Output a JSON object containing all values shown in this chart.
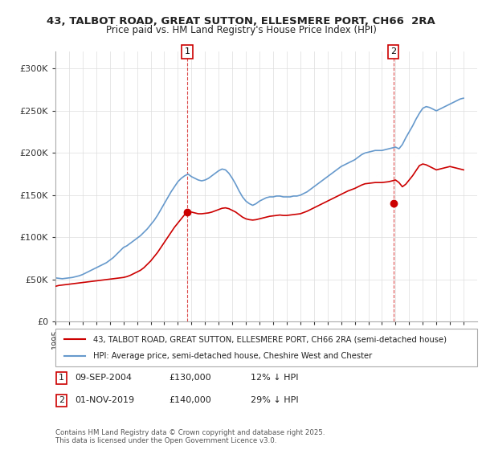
{
  "title": "43, TALBOT ROAD, GREAT SUTTON, ELLESMERE PORT, CH66  2RA",
  "subtitle": "Price paid vs. HM Land Registry's House Price Index (HPI)",
  "ylabel_ticks": [
    "£0",
    "£50K",
    "£100K",
    "£150K",
    "£200K",
    "£250K",
    "£300K"
  ],
  "ytick_values": [
    0,
    50000,
    100000,
    150000,
    200000,
    250000,
    300000
  ],
  "ylim": [
    0,
    320000
  ],
  "xlim_start": 1995,
  "xlim_end": 2026,
  "legend_line1": "43, TALBOT ROAD, GREAT SUTTON, ELLESMERE PORT, CH66 2RA (semi-detached house)",
  "legend_line2": "HPI: Average price, semi-detached house, Cheshire West and Chester",
  "annotation1": {
    "label": "1",
    "date_str": "09-SEP-2004",
    "price": "£130,000",
    "pct": "12% ↓ HPI",
    "x_data": 2004.69,
    "y_data": 130000
  },
  "annotation2": {
    "label": "2",
    "date_str": "01-NOV-2019",
    "price": "£140,000",
    "pct": "29% ↓ HPI",
    "x_data": 2019.83,
    "y_data": 140000
  },
  "copyright": "Contains HM Land Registry data © Crown copyright and database right 2025.\nThis data is licensed under the Open Government Licence v3.0.",
  "line_color_red": "#cc0000",
  "line_color_blue": "#6699cc",
  "background_color": "#ffffff",
  "grid_color": "#dddddd",
  "hpi_x": [
    1995.0,
    1995.25,
    1995.5,
    1995.75,
    1996.0,
    1996.25,
    1996.5,
    1996.75,
    1997.0,
    1997.25,
    1997.5,
    1997.75,
    1998.0,
    1998.25,
    1998.5,
    1998.75,
    1999.0,
    1999.25,
    1999.5,
    1999.75,
    2000.0,
    2000.25,
    2000.5,
    2000.75,
    2001.0,
    2001.25,
    2001.5,
    2001.75,
    2002.0,
    2002.25,
    2002.5,
    2002.75,
    2003.0,
    2003.25,
    2003.5,
    2003.75,
    2004.0,
    2004.25,
    2004.5,
    2004.75,
    2005.0,
    2005.25,
    2005.5,
    2005.75,
    2006.0,
    2006.25,
    2006.5,
    2006.75,
    2007.0,
    2007.25,
    2007.5,
    2007.75,
    2008.0,
    2008.25,
    2008.5,
    2008.75,
    2009.0,
    2009.25,
    2009.5,
    2009.75,
    2010.0,
    2010.25,
    2010.5,
    2010.75,
    2011.0,
    2011.25,
    2011.5,
    2011.75,
    2012.0,
    2012.25,
    2012.5,
    2012.75,
    2013.0,
    2013.25,
    2013.5,
    2013.75,
    2014.0,
    2014.25,
    2014.5,
    2014.75,
    2015.0,
    2015.25,
    2015.5,
    2015.75,
    2016.0,
    2016.25,
    2016.5,
    2016.75,
    2017.0,
    2017.25,
    2017.5,
    2017.75,
    2018.0,
    2018.25,
    2018.5,
    2018.75,
    2019.0,
    2019.25,
    2019.5,
    2019.75,
    2020.0,
    2020.25,
    2020.5,
    2020.75,
    2021.0,
    2021.25,
    2021.5,
    2021.75,
    2022.0,
    2022.25,
    2022.5,
    2022.75,
    2023.0,
    2023.25,
    2023.5,
    2023.75,
    2024.0,
    2024.25,
    2024.5,
    2024.75,
    2025.0
  ],
  "hpi_y": [
    52000,
    51500,
    51000,
    51500,
    52000,
    52500,
    53500,
    54500,
    56000,
    58000,
    60000,
    62000,
    64000,
    66000,
    68000,
    70000,
    73000,
    76000,
    80000,
    84000,
    88000,
    90000,
    93000,
    96000,
    99000,
    102000,
    106000,
    110000,
    115000,
    120000,
    126000,
    133000,
    140000,
    147000,
    154000,
    160000,
    166000,
    170000,
    173000,
    175000,
    172000,
    170000,
    168000,
    167000,
    168000,
    170000,
    173000,
    176000,
    179000,
    181000,
    180000,
    176000,
    170000,
    163000,
    155000,
    148000,
    143000,
    140000,
    138000,
    140000,
    143000,
    145000,
    147000,
    148000,
    148000,
    149000,
    149000,
    148000,
    148000,
    148000,
    149000,
    149000,
    150000,
    152000,
    154000,
    157000,
    160000,
    163000,
    166000,
    169000,
    172000,
    175000,
    178000,
    181000,
    184000,
    186000,
    188000,
    190000,
    192000,
    195000,
    198000,
    200000,
    201000,
    202000,
    203000,
    203000,
    203000,
    204000,
    205000,
    206000,
    207000,
    205000,
    210000,
    218000,
    225000,
    232000,
    240000,
    247000,
    253000,
    255000,
    254000,
    252000,
    250000,
    252000,
    254000,
    256000,
    258000,
    260000,
    262000,
    264000,
    265000
  ],
  "price_x": [
    1995.0,
    1995.25,
    1995.5,
    1995.75,
    1996.0,
    1996.25,
    1996.5,
    1996.75,
    1997.0,
    1997.25,
    1997.5,
    1997.75,
    1998.0,
    1998.25,
    1998.5,
    1998.75,
    1999.0,
    1999.25,
    1999.5,
    1999.75,
    2000.0,
    2000.25,
    2000.5,
    2000.75,
    2001.0,
    2001.25,
    2001.5,
    2001.75,
    2002.0,
    2002.25,
    2002.5,
    2002.75,
    2003.0,
    2003.25,
    2003.5,
    2003.75,
    2004.0,
    2004.25,
    2004.5,
    2004.75,
    2005.0,
    2005.25,
    2005.5,
    2005.75,
    2006.0,
    2006.25,
    2006.5,
    2006.75,
    2007.0,
    2007.25,
    2007.5,
    2007.75,
    2008.0,
    2008.25,
    2008.5,
    2008.75,
    2009.0,
    2009.25,
    2009.5,
    2009.75,
    2010.0,
    2010.25,
    2010.5,
    2010.75,
    2011.0,
    2011.25,
    2011.5,
    2011.75,
    2012.0,
    2012.25,
    2012.5,
    2012.75,
    2013.0,
    2013.25,
    2013.5,
    2013.75,
    2014.0,
    2014.25,
    2014.5,
    2014.75,
    2015.0,
    2015.25,
    2015.5,
    2015.75,
    2016.0,
    2016.25,
    2016.5,
    2016.75,
    2017.0,
    2017.25,
    2017.5,
    2017.75,
    2018.0,
    2018.25,
    2018.5,
    2018.75,
    2019.0,
    2019.25,
    2019.5,
    2019.75,
    2020.0,
    2020.25,
    2020.5,
    2020.75,
    2021.0,
    2021.25,
    2021.5,
    2021.75,
    2022.0,
    2022.25,
    2022.5,
    2022.75,
    2023.0,
    2023.25,
    2023.5,
    2023.75,
    2024.0,
    2024.25,
    2024.5,
    2024.75,
    2025.0
  ],
  "price_y": [
    42000,
    43000,
    43500,
    44000,
    44500,
    45000,
    45500,
    46000,
    46500,
    47000,
    47500,
    48000,
    48500,
    49000,
    49500,
    50000,
    50500,
    51000,
    51500,
    52000,
    52500,
    53500,
    55000,
    57000,
    59000,
    61000,
    64000,
    68000,
    72000,
    77000,
    82000,
    88000,
    94000,
    100000,
    106000,
    112000,
    117000,
    122000,
    127000,
    130000,
    130000,
    129000,
    128000,
    128000,
    128500,
    129000,
    130000,
    131500,
    133000,
    134500,
    135000,
    134000,
    132000,
    130000,
    127000,
    124000,
    122000,
    121000,
    120500,
    121000,
    122000,
    123000,
    124000,
    125000,
    125500,
    126000,
    126500,
    126000,
    126000,
    126500,
    127000,
    127500,
    128000,
    129500,
    131000,
    133000,
    135000,
    137000,
    139000,
    141000,
    143000,
    145000,
    147000,
    149000,
    151000,
    153000,
    155000,
    156500,
    158000,
    160000,
    162000,
    163500,
    164000,
    164500,
    165000,
    165000,
    165000,
    165500,
    166000,
    167000,
    168000,
    165000,
    160000,
    163000,
    168000,
    173000,
    179000,
    185000,
    187000,
    186000,
    184000,
    182000,
    180000,
    181000,
    182000,
    183000,
    184000,
    183000,
    182000,
    181000,
    180000
  ]
}
